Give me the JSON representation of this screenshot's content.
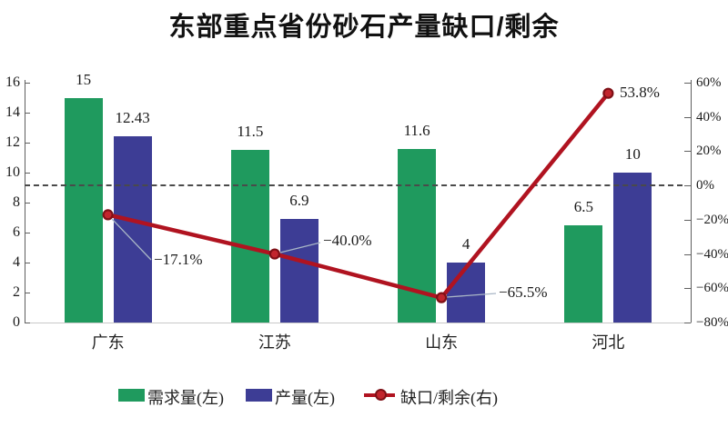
{
  "chart_data": {
    "type": "combo-bar-line",
    "title": "东部重点省份砂石产量缺口/剩余",
    "categories": [
      "广东",
      "江苏",
      "山东",
      "河北"
    ],
    "series": [
      {
        "name": "需求量(左)",
        "type": "bar",
        "axis": "left",
        "color": "#1f9a5e",
        "values": [
          15,
          11.5,
          11.6,
          6.5
        ],
        "labels": [
          "15",
          "11.5",
          "11.6",
          "6.5"
        ]
      },
      {
        "name": "产量(左)",
        "type": "bar",
        "axis": "left",
        "color": "#3d3d95",
        "values": [
          12.43,
          6.9,
          4,
          10
        ],
        "labels": [
          "12.43",
          "6.9",
          "4",
          "10"
        ]
      },
      {
        "name": "缺口/剩余(右)",
        "type": "line",
        "axis": "right",
        "color": "#b01320",
        "marker_fill": "#c2252d",
        "marker_stroke": "#7e1016",
        "values": [
          -17.1,
          -40.0,
          -65.5,
          53.8
        ],
        "labels": [
          "−17.1%",
          "−40.0%",
          "−65.5%",
          "53.8%"
        ]
      }
    ],
    "left_axis": {
      "min": 0,
      "max": 16,
      "step": 2,
      "tick_labels": [
        "0",
        "2",
        "4",
        "6",
        "8",
        "10",
        "12",
        "14",
        "16"
      ]
    },
    "right_axis": {
      "min": -80,
      "max": 60,
      "step": 20,
      "tick_labels": [
        "60%",
        "40%",
        "20%",
        "0%",
        "−20%",
        "−40%",
        "−60%",
        "−80%"
      ]
    },
    "zero_line_at_right_value": 0,
    "grid": false,
    "legend_position": "bottom"
  }
}
